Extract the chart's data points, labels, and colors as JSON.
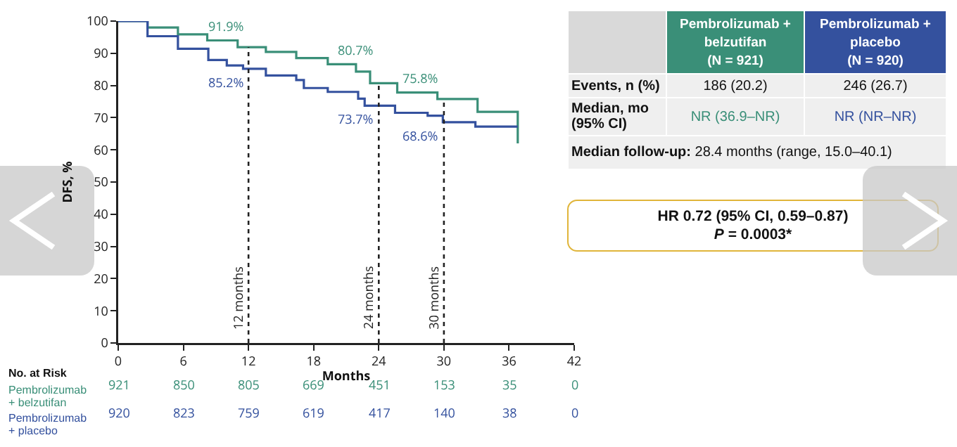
{
  "chart_data": {
    "type": "step",
    "xlabel": "Months",
    "ylabel": "DFS, %",
    "xlim": [
      0,
      42
    ],
    "xticks": [
      0,
      6,
      12,
      18,
      24,
      30,
      36,
      42
    ],
    "ylim": [
      0,
      100
    ],
    "yticks": [
      0,
      10,
      20,
      30,
      40,
      50,
      60,
      70,
      80,
      90,
      100
    ],
    "grid": false,
    "legend": false,
    "line_style": "solid",
    "series": [
      {
        "name": "Pembrolizumab + belzutifan",
        "color": "#3a8f78",
        "x": [
          0,
          2.7,
          5.5,
          8.2,
          11,
          13.6,
          16.4,
          19.3,
          21.9,
          23.2,
          25.7,
          29.4,
          33.1,
          36.8,
          36.8
        ],
        "values": [
          100,
          98,
          95.9,
          94,
          91.9,
          90.4,
          88.5,
          86.6,
          84.3,
          80.7,
          77.8,
          75.8,
          71.8,
          71.8,
          62
        ]
      },
      {
        "name": "Pembrolizumab + placebo",
        "color": "#34519e",
        "x": [
          0,
          2.7,
          5.5,
          8.3,
          10,
          11.5,
          13.6,
          16.4,
          17.1,
          19.3,
          22.1,
          22.7,
          25.5,
          28.5,
          29.9,
          32.9,
          36.8
        ],
        "values": [
          100,
          95.3,
          91.4,
          87.9,
          86.2,
          85.2,
          83.1,
          81.7,
          79.2,
          78,
          75.9,
          73.7,
          71.5,
          70.6,
          68.6,
          67.2,
          67.2
        ]
      }
    ],
    "ref_lines": [
      {
        "axis": "x",
        "value": 12,
        "label": "12 months",
        "line_style": "dotted",
        "color": "#222222"
      },
      {
        "axis": "x",
        "value": 24,
        "label": "24 months",
        "line_style": "dotted",
        "color": "#222222"
      },
      {
        "axis": "x",
        "value": 30,
        "label": "30 months",
        "line_style": "dotted",
        "color": "#222222"
      }
    ],
    "annotations": [
      {
        "text": "91.9%",
        "x": 12,
        "y": 91.9
      },
      {
        "text": "80.7%",
        "x": 24,
        "y": 80.7
      },
      {
        "text": "75.8%",
        "x": 30,
        "y": 75.8
      },
      {
        "text": "85.2%",
        "x": 12,
        "y": 85.2
      },
      {
        "text": "73.7%",
        "x": 24,
        "y": 73.7
      },
      {
        "text": "68.6%",
        "x": 30,
        "y": 68.6
      },
      "No. at Risk",
      "921",
      "850",
      "805",
      "669",
      "451",
      "153",
      "35",
      "0",
      "920",
      "823",
      "759",
      "619",
      "417",
      "140",
      "38",
      "0",
      "Pembrolizumab + belzutifan (N = 921)",
      "Pembrolizumab + placebo (N = 920)",
      "Events, n (%)",
      "186 (20.2)",
      "246 (26.7)",
      "Median, mo (95% CI)",
      "NR (36.9–NR)",
      "NR (NR–NR)",
      "Median follow-up: 28.4 months (range, 15.0–40.1)",
      "HR 0.72 (95% CI, 0.59–0.87)",
      "P = 0.0003*"
    ]
  }
}
